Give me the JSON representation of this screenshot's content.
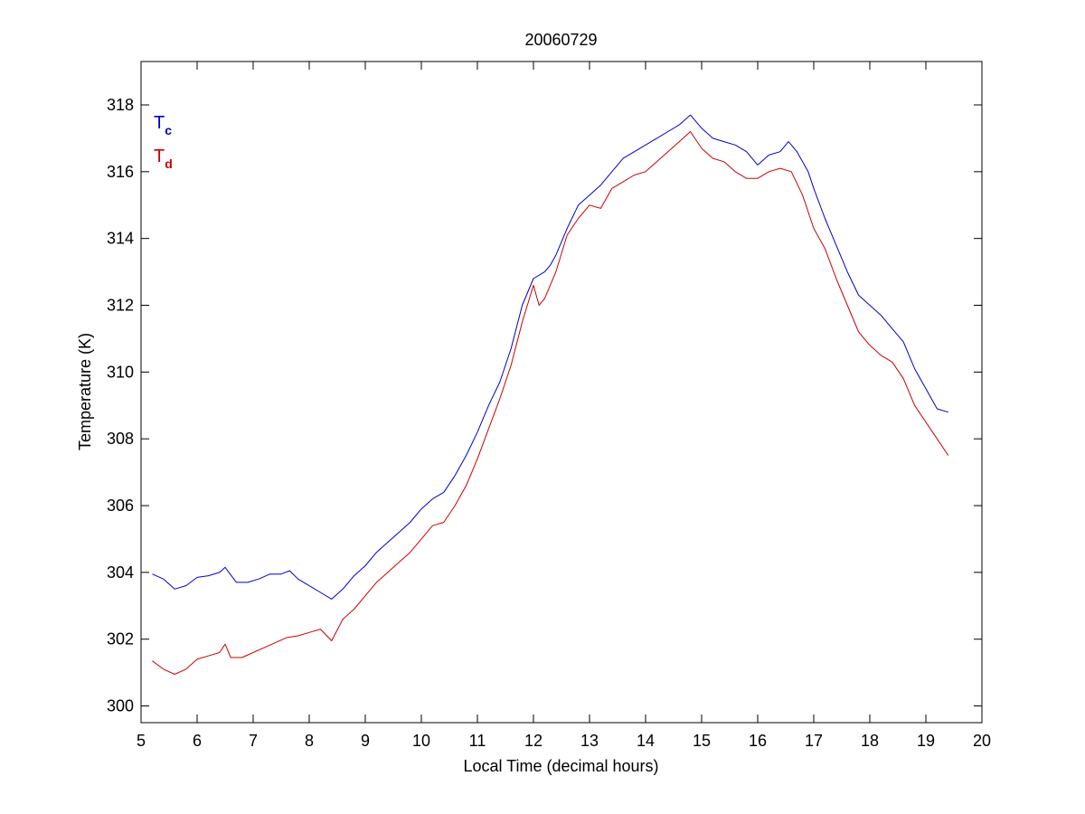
{
  "chart_data": {
    "type": "line",
    "title": "20060729",
    "xlabel": "Local Time (decimal hours)",
    "ylabel": "Temperature (K)",
    "xlim": [
      5,
      20
    ],
    "ylim": [
      299.5,
      319.3
    ],
    "xticks": [
      5,
      6,
      7,
      8,
      9,
      10,
      11,
      12,
      13,
      14,
      15,
      16,
      17,
      18,
      19,
      20
    ],
    "yticks": [
      300,
      302,
      304,
      306,
      308,
      310,
      312,
      314,
      316,
      318
    ],
    "grid": false,
    "legend_position": "top-left",
    "series": [
      {
        "name": "T",
        "name_subscript": "c",
        "color": "#0000cc",
        "points": [
          [
            5.2,
            303.95
          ],
          [
            5.4,
            303.8
          ],
          [
            5.6,
            303.5
          ],
          [
            5.8,
            303.6
          ],
          [
            6.0,
            303.85
          ],
          [
            6.2,
            303.9
          ],
          [
            6.4,
            304.0
          ],
          [
            6.5,
            304.15
          ],
          [
            6.7,
            303.7
          ],
          [
            6.9,
            303.7
          ],
          [
            7.1,
            303.8
          ],
          [
            7.3,
            303.95
          ],
          [
            7.5,
            303.95
          ],
          [
            7.65,
            304.05
          ],
          [
            7.8,
            303.8
          ],
          [
            8.0,
            303.6
          ],
          [
            8.2,
            303.4
          ],
          [
            8.4,
            303.2
          ],
          [
            8.6,
            303.5
          ],
          [
            8.8,
            303.9
          ],
          [
            9.0,
            304.2
          ],
          [
            9.2,
            304.6
          ],
          [
            9.4,
            304.9
          ],
          [
            9.6,
            305.2
          ],
          [
            9.8,
            305.5
          ],
          [
            10.0,
            305.9
          ],
          [
            10.2,
            306.2
          ],
          [
            10.4,
            306.4
          ],
          [
            10.6,
            306.9
          ],
          [
            10.8,
            307.5
          ],
          [
            11.0,
            308.2
          ],
          [
            11.2,
            309.0
          ],
          [
            11.4,
            309.7
          ],
          [
            11.6,
            310.7
          ],
          [
            11.8,
            312.0
          ],
          [
            12.0,
            312.8
          ],
          [
            12.2,
            313.0
          ],
          [
            12.3,
            313.2
          ],
          [
            12.4,
            313.5
          ],
          [
            12.6,
            314.3
          ],
          [
            12.8,
            315.0
          ],
          [
            13.0,
            315.3
          ],
          [
            13.2,
            315.6
          ],
          [
            13.4,
            316.0
          ],
          [
            13.6,
            316.4
          ],
          [
            13.8,
            316.6
          ],
          [
            14.0,
            316.8
          ],
          [
            14.2,
            317.0
          ],
          [
            14.4,
            317.2
          ],
          [
            14.6,
            317.4
          ],
          [
            14.8,
            317.7
          ],
          [
            15.0,
            317.3
          ],
          [
            15.2,
            317.0
          ],
          [
            15.4,
            316.9
          ],
          [
            15.6,
            316.8
          ],
          [
            15.8,
            316.6
          ],
          [
            16.0,
            316.2
          ],
          [
            16.2,
            316.5
          ],
          [
            16.4,
            316.6
          ],
          [
            16.55,
            316.9
          ],
          [
            16.7,
            316.6
          ],
          [
            16.9,
            316.0
          ],
          [
            17.0,
            315.5
          ],
          [
            17.2,
            314.6
          ],
          [
            17.4,
            313.8
          ],
          [
            17.6,
            313.0
          ],
          [
            17.8,
            312.3
          ],
          [
            18.0,
            312.0
          ],
          [
            18.2,
            311.7
          ],
          [
            18.4,
            311.3
          ],
          [
            18.6,
            310.9
          ],
          [
            18.8,
            310.1
          ],
          [
            19.0,
            309.5
          ],
          [
            19.2,
            308.9
          ],
          [
            19.4,
            308.8
          ]
        ]
      },
      {
        "name": "T",
        "name_subscript": "d",
        "color": "#cc0000",
        "points": [
          [
            5.2,
            301.35
          ],
          [
            5.4,
            301.1
          ],
          [
            5.6,
            300.95
          ],
          [
            5.8,
            301.1
          ],
          [
            6.0,
            301.4
          ],
          [
            6.2,
            301.5
          ],
          [
            6.4,
            301.6
          ],
          [
            6.5,
            301.85
          ],
          [
            6.6,
            301.45
          ],
          [
            6.8,
            301.45
          ],
          [
            7.0,
            301.6
          ],
          [
            7.2,
            301.75
          ],
          [
            7.4,
            301.9
          ],
          [
            7.6,
            302.05
          ],
          [
            7.8,
            302.1
          ],
          [
            8.0,
            302.2
          ],
          [
            8.2,
            302.3
          ],
          [
            8.4,
            301.95
          ],
          [
            8.6,
            302.6
          ],
          [
            8.8,
            302.9
          ],
          [
            9.0,
            303.3
          ],
          [
            9.2,
            303.7
          ],
          [
            9.4,
            304.0
          ],
          [
            9.6,
            304.3
          ],
          [
            9.8,
            304.6
          ],
          [
            10.0,
            305.0
          ],
          [
            10.2,
            305.4
          ],
          [
            10.4,
            305.5
          ],
          [
            10.6,
            306.0
          ],
          [
            10.8,
            306.6
          ],
          [
            11.0,
            307.4
          ],
          [
            11.2,
            308.3
          ],
          [
            11.4,
            309.2
          ],
          [
            11.6,
            310.2
          ],
          [
            11.8,
            311.5
          ],
          [
            12.0,
            312.6
          ],
          [
            12.1,
            312.0
          ],
          [
            12.2,
            312.2
          ],
          [
            12.4,
            313.0
          ],
          [
            12.6,
            314.1
          ],
          [
            12.8,
            314.6
          ],
          [
            13.0,
            315.0
          ],
          [
            13.2,
            314.9
          ],
          [
            13.4,
            315.5
          ],
          [
            13.6,
            315.7
          ],
          [
            13.8,
            315.9
          ],
          [
            14.0,
            316.0
          ],
          [
            14.2,
            316.3
          ],
          [
            14.4,
            316.6
          ],
          [
            14.6,
            316.9
          ],
          [
            14.8,
            317.2
          ],
          [
            15.0,
            316.7
          ],
          [
            15.2,
            316.4
          ],
          [
            15.4,
            316.3
          ],
          [
            15.6,
            316.0
          ],
          [
            15.8,
            315.8
          ],
          [
            16.0,
            315.8
          ],
          [
            16.2,
            316.0
          ],
          [
            16.4,
            316.1
          ],
          [
            16.6,
            316.0
          ],
          [
            16.8,
            315.3
          ],
          [
            17.0,
            314.3
          ],
          [
            17.2,
            313.7
          ],
          [
            17.4,
            312.8
          ],
          [
            17.6,
            312.0
          ],
          [
            17.8,
            311.2
          ],
          [
            18.0,
            310.8
          ],
          [
            18.2,
            310.5
          ],
          [
            18.4,
            310.3
          ],
          [
            18.6,
            309.8
          ],
          [
            18.8,
            309.0
          ],
          [
            19.0,
            308.5
          ],
          [
            19.2,
            308.0
          ],
          [
            19.4,
            307.5
          ]
        ]
      }
    ]
  }
}
